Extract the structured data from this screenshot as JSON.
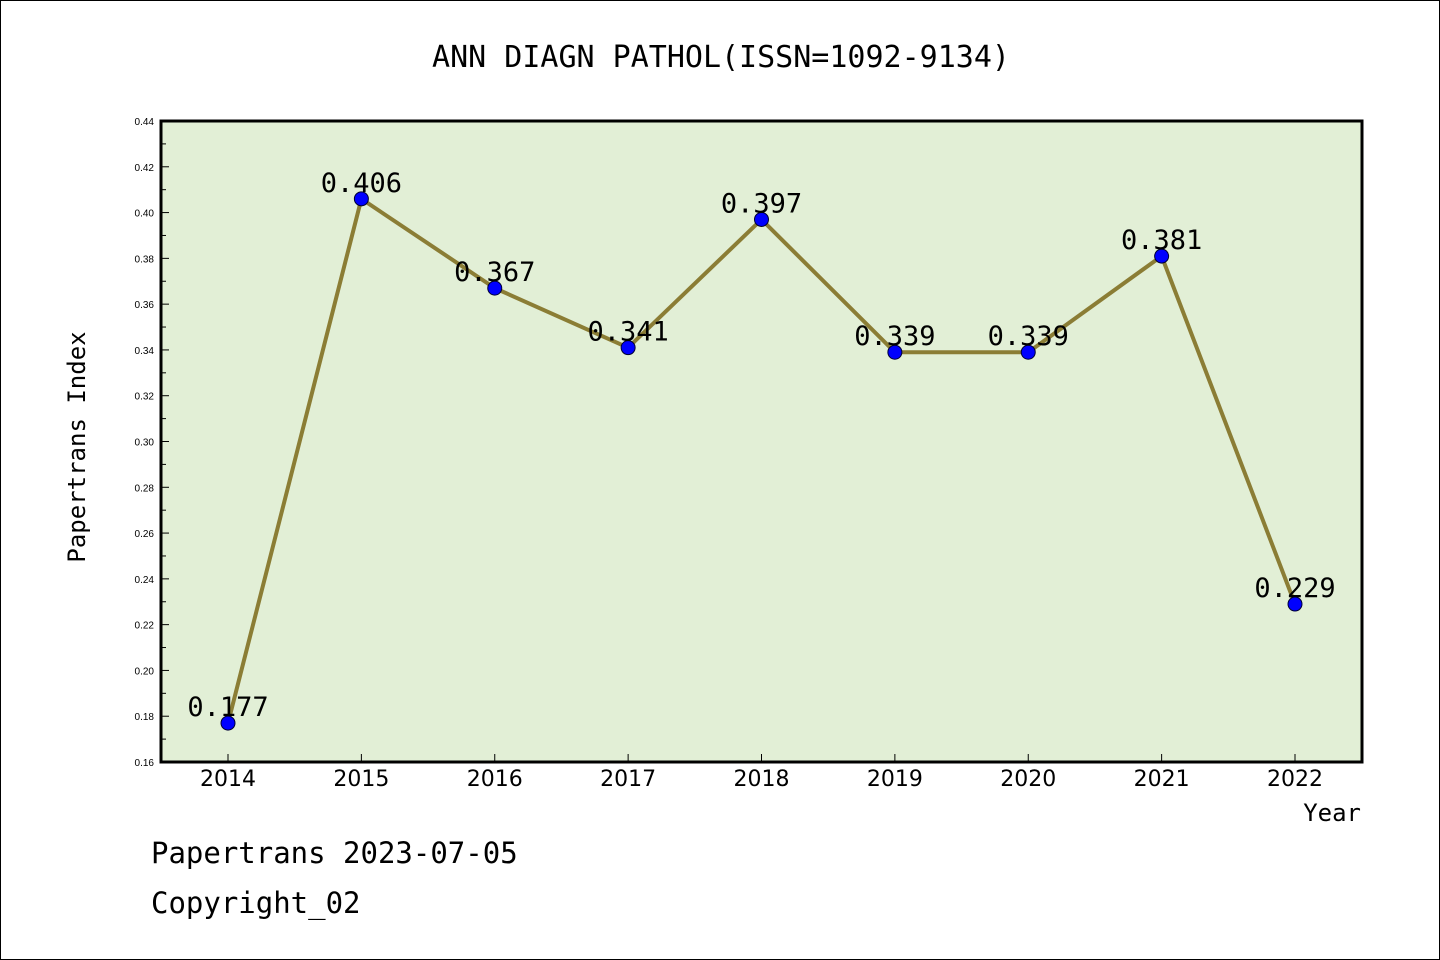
{
  "footer": {
    "line1": "Papertrans 2023-07-05",
    "line2": "Copyright_02"
  },
  "chart_data": {
    "type": "line",
    "title": "ANN DIAGN PATHOL(ISSN=1092-9134)",
    "xlabel": "Year",
    "ylabel": "Papertrans Index",
    "categories": [
      "2014",
      "2015",
      "2016",
      "2017",
      "2018",
      "2019",
      "2020",
      "2021",
      "2022"
    ],
    "values": [
      0.177,
      0.406,
      0.367,
      0.341,
      0.397,
      0.339,
      0.339,
      0.381,
      0.229
    ],
    "data_labels": [
      "0.177",
      "0.406",
      "0.367",
      "0.341",
      "0.397",
      "0.339",
      "0.339",
      "0.381",
      "0.229"
    ],
    "ylim": [
      0.16,
      0.44
    ],
    "yticks": [
      "0.16",
      "0.18",
      "0.20",
      "0.22",
      "0.24",
      "0.26",
      "0.28",
      "0.30",
      "0.32",
      "0.34",
      "0.36",
      "0.38",
      "0.40",
      "0.42",
      "0.44"
    ],
    "grid": false,
    "plot_background": "#e2efd6",
    "line_color": "#8b7d35",
    "marker_color": "#0000ff"
  }
}
